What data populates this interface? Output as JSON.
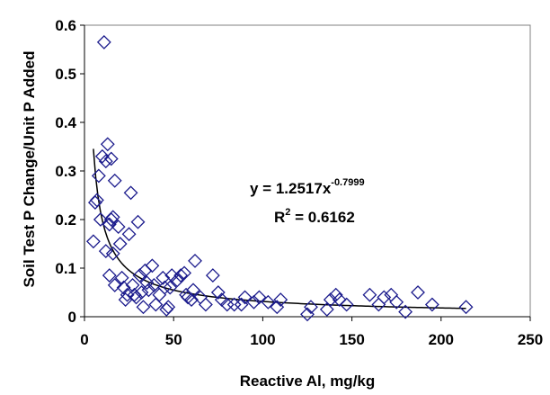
{
  "chart_data": {
    "type": "scatter",
    "xlabel": "Reactive Al, mg/kg",
    "ylabel": "Soil Test P Change/Unit P Added",
    "xlim": [
      0,
      250
    ],
    "ylim": [
      0,
      0.6
    ],
    "x_ticks": [
      "0",
      "50",
      "100",
      "150",
      "200",
      "250"
    ],
    "y_ticks": [
      "0",
      "0.1",
      "0.2",
      "0.3",
      "0.4",
      "0.5",
      "0.6"
    ],
    "grid": false,
    "legend": "none",
    "marker": "diamond",
    "marker_color": "#1a1a8c",
    "trendline_color": "#000000",
    "trendline": {
      "type": "power",
      "a": 1.2517,
      "b": -0.7999
    },
    "annotation": {
      "equation_main": "y = 1.2517x",
      "equation_exponent": "-0.7999",
      "r2_prefix": "R",
      "r2_exponent": "2",
      "r2_suffix": " = 0.6162"
    },
    "points": [
      [
        5,
        0.155
      ],
      [
        6,
        0.235
      ],
      [
        7,
        0.24
      ],
      [
        8,
        0.29
      ],
      [
        9,
        0.2
      ],
      [
        10,
        0.33
      ],
      [
        11,
        0.565
      ],
      [
        12,
        0.32
      ],
      [
        13,
        0.355
      ],
      [
        14,
        0.19
      ],
      [
        15,
        0.325
      ],
      [
        15,
        0.2
      ],
      [
        16,
        0.205
      ],
      [
        17,
        0.28
      ],
      [
        12,
        0.135
      ],
      [
        14,
        0.085
      ],
      [
        16,
        0.13
      ],
      [
        17,
        0.065
      ],
      [
        19,
        0.185
      ],
      [
        20,
        0.15
      ],
      [
        21,
        0.08
      ],
      [
        22,
        0.06
      ],
      [
        23,
        0.035
      ],
      [
        24,
        0.045
      ],
      [
        25,
        0.17
      ],
      [
        26,
        0.255
      ],
      [
        27,
        0.065
      ],
      [
        28,
        0.045
      ],
      [
        29,
        0.04
      ],
      [
        30,
        0.195
      ],
      [
        31,
        0.085
      ],
      [
        32,
        0.05
      ],
      [
        33,
        0.02
      ],
      [
        34,
        0.095
      ],
      [
        35,
        0.07
      ],
      [
        36,
        0.055
      ],
      [
        38,
        0.105
      ],
      [
        39,
        0.065
      ],
      [
        40,
        0.025
      ],
      [
        42,
        0.045
      ],
      [
        44,
        0.08
      ],
      [
        45,
        0.06
      ],
      [
        46,
        0.015
      ],
      [
        47,
        0.02
      ],
      [
        48,
        0.06
      ],
      [
        49,
        0.085
      ],
      [
        52,
        0.075
      ],
      [
        54,
        0.085
      ],
      [
        56,
        0.09
      ],
      [
        57,
        0.045
      ],
      [
        58,
        0.04
      ],
      [
        60,
        0.035
      ],
      [
        61,
        0.055
      ],
      [
        62,
        0.115
      ],
      [
        65,
        0.04
      ],
      [
        68,
        0.025
      ],
      [
        72,
        0.085
      ],
      [
        75,
        0.05
      ],
      [
        77,
        0.035
      ],
      [
        80,
        0.025
      ],
      [
        84,
        0.025
      ],
      [
        88,
        0.025
      ],
      [
        90,
        0.04
      ],
      [
        95,
        0.03
      ],
      [
        98,
        0.04
      ],
      [
        103,
        0.03
      ],
      [
        108,
        0.02
      ],
      [
        110,
        0.035
      ],
      [
        125,
        0.005
      ],
      [
        127,
        0.02
      ],
      [
        136,
        0.015
      ],
      [
        138,
        0.035
      ],
      [
        141,
        0.045
      ],
      [
        143,
        0.035
      ],
      [
        147,
        0.025
      ],
      [
        160,
        0.045
      ],
      [
        165,
        0.025
      ],
      [
        168,
        0.04
      ],
      [
        172,
        0.045
      ],
      [
        175,
        0.03
      ],
      [
        180,
        0.01
      ],
      [
        187,
        0.05
      ],
      [
        195,
        0.025
      ],
      [
        214,
        0.02
      ]
    ]
  }
}
